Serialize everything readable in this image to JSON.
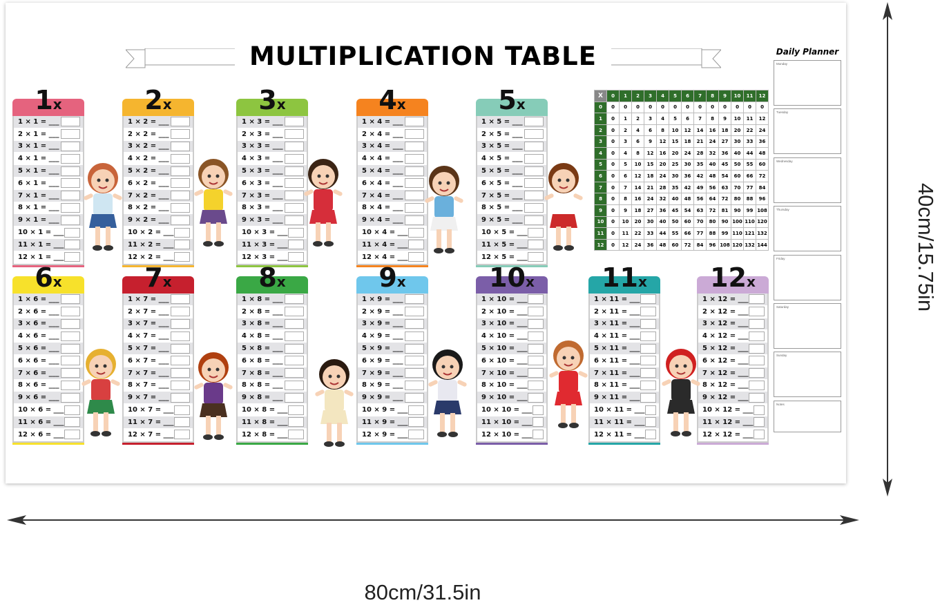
{
  "title": "MULTIPLICATION TABLE",
  "tables": [
    {
      "label": "1",
      "suffix": "x",
      "factor": 1,
      "color": "#e5637e"
    },
    {
      "label": "2",
      "suffix": "x",
      "factor": 2,
      "color": "#f5b52f"
    },
    {
      "label": "3",
      "suffix": "x",
      "factor": 3,
      "color": "#8dc540"
    },
    {
      "label": "4",
      "suffix": "x",
      "factor": 4,
      "color": "#f5831f"
    },
    {
      "label": "5",
      "suffix": "x",
      "factor": 5,
      "color": "#86ccb8"
    },
    {
      "label": "6",
      "suffix": "x",
      "factor": 6,
      "color": "#f7e12b"
    },
    {
      "label": "7",
      "suffix": "x",
      "factor": 7,
      "color": "#c6202e"
    },
    {
      "label": "8",
      "suffix": "x",
      "factor": 8,
      "color": "#3aa845"
    },
    {
      "label": "9",
      "suffix": "x",
      "factor": 9,
      "color": "#6fc7ec"
    },
    {
      "label": "10",
      "suffix": "x",
      "factor": 10,
      "color": "#7b5ea8"
    },
    {
      "label": "11",
      "suffix": "x",
      "factor": 11,
      "color": "#25a6a7"
    },
    {
      "label": "12",
      "suffix": "x",
      "factor": 12,
      "color": "#cbaad6"
    }
  ],
  "multipliers": [
    1,
    2,
    3,
    4,
    5,
    6,
    7,
    8,
    9,
    10,
    11,
    12
  ],
  "equation_blank": "___",
  "grid": {
    "corner": "X",
    "headers": [
      0,
      1,
      2,
      3,
      4,
      5,
      6,
      7,
      8,
      9,
      10,
      11,
      12
    ],
    "header_color": "#2f6e2a"
  },
  "planner": {
    "title": "Daily Planner",
    "days": [
      "Monday",
      "Tuesday",
      "Wednesday",
      "Thursday",
      "Friday",
      "Saturday",
      "Sunday",
      "Notes"
    ]
  },
  "dimensions": {
    "height": "40cm/15.75in",
    "width": "80cm/31.5in"
  }
}
